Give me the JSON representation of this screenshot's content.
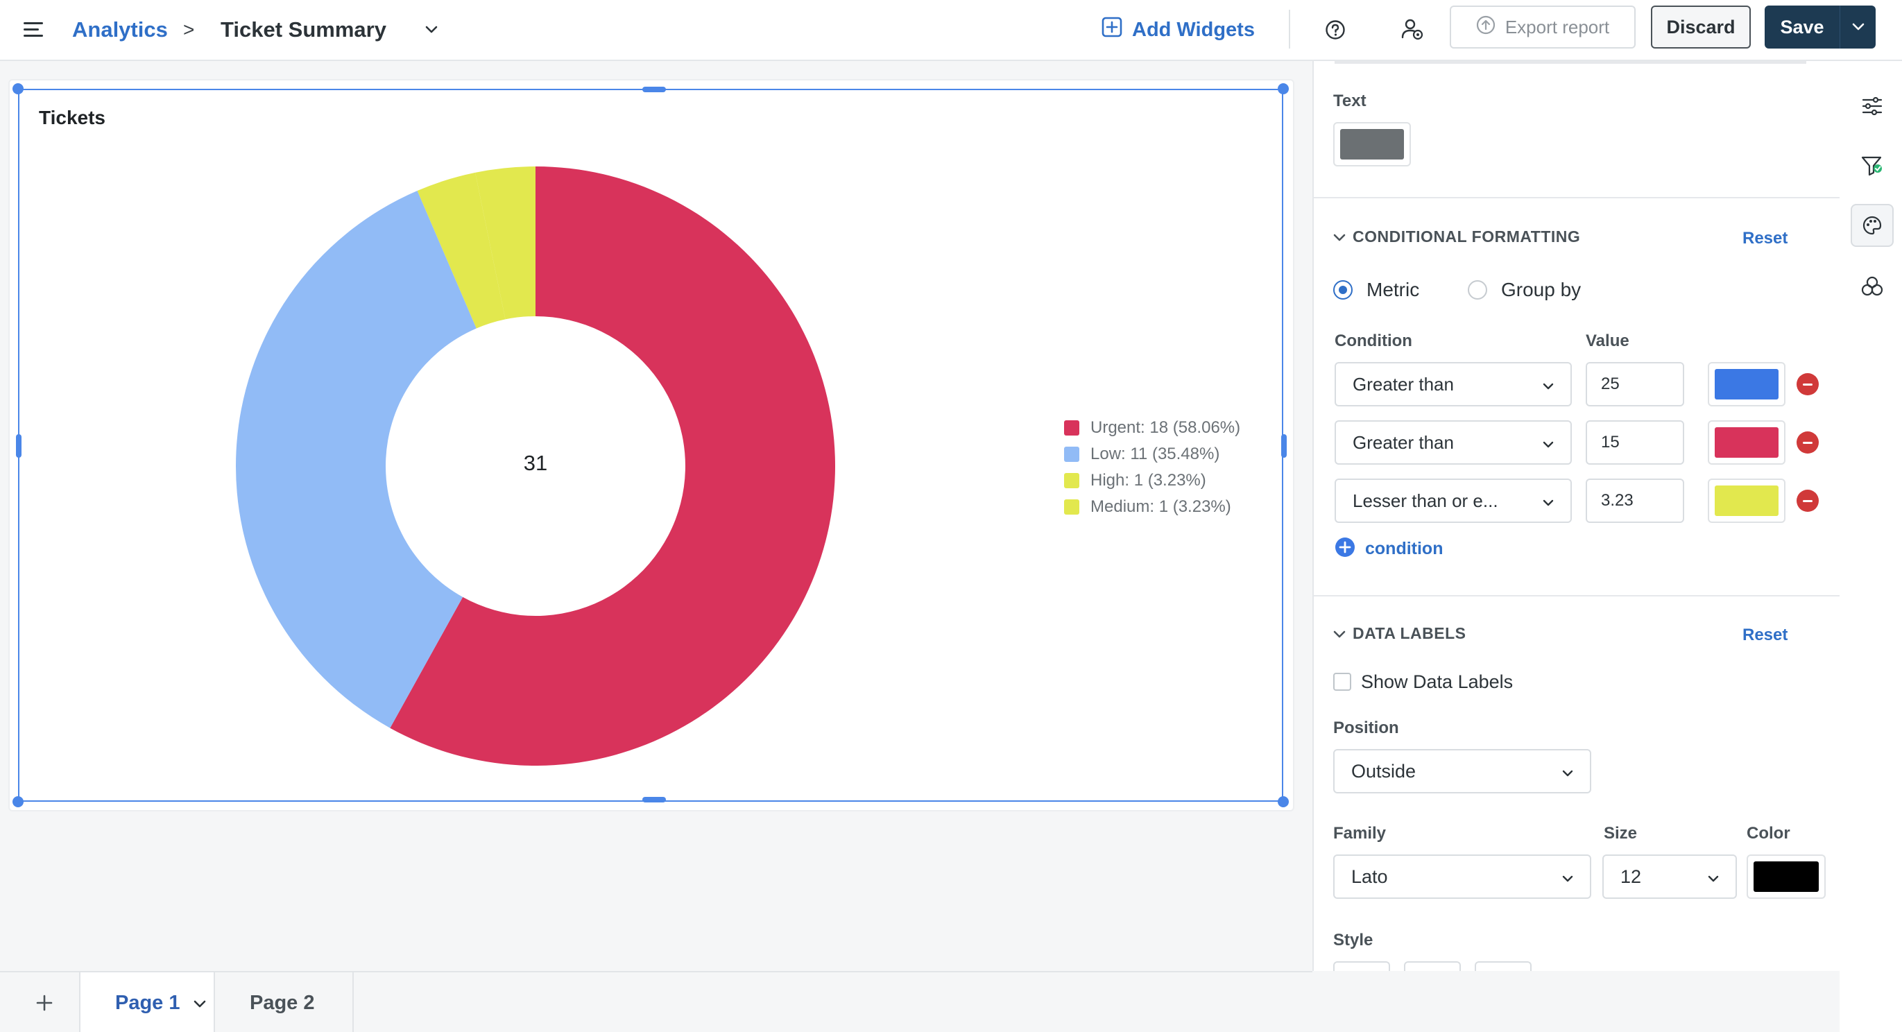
{
  "header": {
    "breadcrumb_root": "Analytics",
    "breadcrumb_sep": ">",
    "title": "Ticket Summary",
    "add_widgets_label": "Add Widgets",
    "export_label": "Export report",
    "discard_label": "Discard",
    "save_label": "Save"
  },
  "widget": {
    "title": "Tickets",
    "center_total": "31"
  },
  "chart_data": {
    "type": "pie",
    "title": "Tickets",
    "donut": true,
    "total": 31,
    "categories": [
      "Urgent",
      "Low",
      "High",
      "Medium"
    ],
    "values": [
      18,
      11,
      1,
      1
    ],
    "percentages": [
      58.06,
      35.48,
      3.23,
      3.23
    ],
    "colors": [
      "#d8335b",
      "#91bbf6",
      "#e2e84e",
      "#e2e84e"
    ],
    "legend_position": "right",
    "legend_labels": [
      "Urgent: 18 (58.06%)",
      "Low: 11 (35.48%)",
      "High: 1 (3.23%)",
      "Medium: 1 (3.23%)"
    ]
  },
  "pages": {
    "tabs": [
      {
        "label": "Page 1",
        "active": true
      },
      {
        "label": "Page 2",
        "active": false
      }
    ]
  },
  "panel": {
    "text_label": "Text",
    "text_color": "#6b7073",
    "conditional": {
      "heading": "CONDITIONAL FORMATTING",
      "reset": "Reset",
      "mode_metric": "Metric",
      "mode_groupby": "Group by",
      "selected_mode": "Metric",
      "condition_header": "Condition",
      "value_header": "Value",
      "rules": [
        {
          "condition": "Greater than",
          "value": "25",
          "color": "#3b78e4"
        },
        {
          "condition": "Greater than",
          "value": "15",
          "color": "#d8335b"
        },
        {
          "condition": "Lesser than or e...",
          "value": "3.23",
          "color": "#e2e84e"
        }
      ],
      "add_label": "condition"
    },
    "data_labels": {
      "heading": "DATA LABELS",
      "reset": "Reset",
      "show_label": "Show Data Labels",
      "show_checked": false,
      "position_label": "Position",
      "position_value": "Outside",
      "family_label": "Family",
      "family_value": "Lato",
      "size_label": "Size",
      "size_value": "12",
      "color_label": "Color",
      "color_value": "#000000",
      "style_label": "Style"
    }
  },
  "theme": {
    "accent": "#2f6fc7",
    "primary_button": "#1d3a52",
    "selection": "#4a86e8"
  }
}
